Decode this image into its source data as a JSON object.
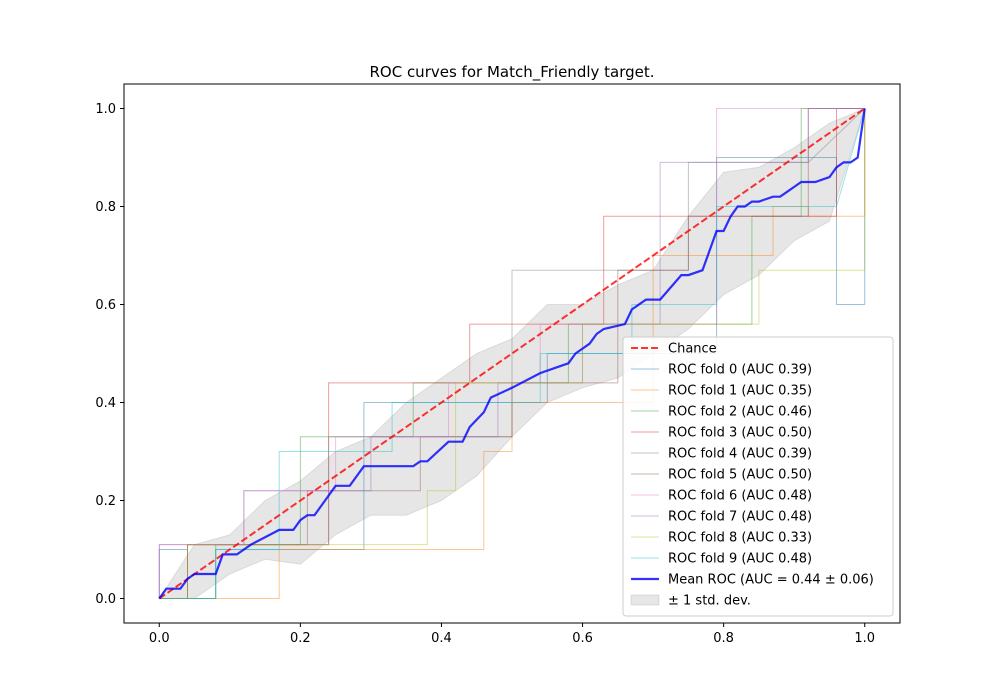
{
  "chart_data": {
    "type": "line",
    "title": "ROC curves for Match_Friendly target.",
    "xlabel": "",
    "ylabel": "",
    "xlim": [
      -0.05,
      1.05
    ],
    "ylim": [
      -0.05,
      1.05
    ],
    "xticks": [
      "0.0",
      "0.2",
      "0.4",
      "0.6",
      "0.8",
      "1.0"
    ],
    "yticks": [
      "0.0",
      "0.2",
      "0.4",
      "0.6",
      "0.8",
      "1.0"
    ],
    "grid": false,
    "legend_position": "lower-right",
    "chance": {
      "name": "Chance",
      "color": "#ff0000",
      "x": [
        0,
        1
      ],
      "y": [
        0,
        1
      ]
    },
    "folds": [
      {
        "name": "ROC fold 0 (AUC 0.39)",
        "color": "#1f77b4",
        "x": [
          0,
          0,
          0.04,
          0.04,
          0.08,
          0.08,
          0.29,
          0.29,
          0.38,
          0.38,
          0.55,
          0.55,
          0.63,
          0.63,
          0.79,
          0.79,
          0.96,
          0.96,
          1.0,
          1.0
        ],
        "y": [
          0,
          0.1,
          0.1,
          0.0,
          0.0,
          0.1,
          0.1,
          0.4,
          0.4,
          0.4,
          0.4,
          0.5,
          0.5,
          0.5,
          0.5,
          0.9,
          0.9,
          0.6,
          0.6,
          1.0
        ]
      },
      {
        "name": "ROC fold 1 (AUC 0.35)",
        "color": "#ff7f0e",
        "x": [
          0,
          0.17,
          0.17,
          0.46,
          0.46,
          0.5,
          0.5,
          0.7,
          0.7,
          0.87,
          0.87,
          0.92,
          0.92,
          1.0,
          1.0
        ],
        "y": [
          0,
          0,
          0.1,
          0.1,
          0.3,
          0.3,
          0.4,
          0.4,
          0.7,
          0.7,
          0.8,
          0.8,
          0.78,
          0.78,
          1.0
        ]
      },
      {
        "name": "ROC fold 2 (AUC 0.46)",
        "color": "#2ca02c",
        "x": [
          0,
          0.08,
          0.08,
          0.2,
          0.2,
          0.36,
          0.36,
          0.58,
          0.58,
          0.84,
          0.84,
          0.91,
          0.91,
          1.0
        ],
        "y": [
          0,
          0,
          0.11,
          0.11,
          0.33,
          0.33,
          0.44,
          0.44,
          0.56,
          0.56,
          0.78,
          0.78,
          1.0,
          1.0
        ]
      },
      {
        "name": "ROC fold 3 (AUC 0.50)",
        "color": "#d62728",
        "x": [
          0,
          0.04,
          0.04,
          0.24,
          0.24,
          0.44,
          0.44,
          0.63,
          0.63,
          0.75,
          0.75,
          0.96,
          0.96,
          1.0
        ],
        "y": [
          0,
          0,
          0.11,
          0.11,
          0.44,
          0.44,
          0.56,
          0.56,
          0.78,
          0.78,
          0.78,
          0.78,
          1.0,
          1.0
        ]
      },
      {
        "name": "ROC fold 4 (AUC 0.39)",
        "color": "#7f7f7f",
        "x": [
          0,
          0.04,
          0.04,
          0.24,
          0.24,
          0.38,
          0.38,
          0.5,
          0.5,
          0.62,
          0.62,
          0.75,
          0.75,
          0.92,
          0.92,
          1.0
        ],
        "y": [
          0,
          0,
          0.11,
          0.11,
          0.33,
          0.33,
          0.33,
          0.33,
          0.67,
          0.67,
          0.67,
          0.67,
          0.89,
          0.89,
          0.89,
          1.0
        ]
      },
      {
        "name": "ROC fold 5 (AUC 0.50)",
        "color": "#8c564b",
        "x": [
          0,
          0.04,
          0.04,
          0.21,
          0.21,
          0.37,
          0.37,
          0.5,
          0.5,
          0.65,
          0.65,
          0.75,
          0.75,
          0.92,
          0.92,
          1.0
        ],
        "y": [
          0,
          0,
          0.11,
          0.11,
          0.22,
          0.22,
          0.33,
          0.33,
          0.44,
          0.44,
          0.67,
          0.67,
          0.78,
          0.78,
          1.0,
          1.0
        ]
      },
      {
        "name": "ROC fold 6 (AUC 0.48)",
        "color": "#e377c2",
        "x": [
          0,
          0,
          0.12,
          0.12,
          0.25,
          0.25,
          0.41,
          0.41,
          0.54,
          0.54,
          0.79,
          0.79,
          1.0
        ],
        "y": [
          0,
          0.11,
          0.11,
          0.22,
          0.22,
          0.33,
          0.33,
          0.44,
          0.44,
          0.56,
          0.56,
          1.0,
          1.0
        ]
      },
      {
        "name": "ROC fold 7 (AUC 0.48)",
        "color": "#9467bd",
        "x": [
          0,
          0,
          0.12,
          0.12,
          0.3,
          0.3,
          0.48,
          0.48,
          0.6,
          0.6,
          0.71,
          0.71,
          0.92,
          0.92,
          1.0
        ],
        "y": [
          0,
          0.11,
          0.11,
          0.22,
          0.22,
          0.33,
          0.33,
          0.44,
          0.44,
          0.56,
          0.56,
          0.89,
          0.89,
          1.0,
          1.0
        ]
      },
      {
        "name": "ROC fold 8 (AUC 0.33)",
        "color": "#bcbd22",
        "x": [
          0,
          0.04,
          0.04,
          0.38,
          0.38,
          0.42,
          0.42,
          0.6,
          0.6,
          0.85,
          0.85,
          1.0,
          1.0
        ],
        "y": [
          0,
          0,
          0.11,
          0.11,
          0.22,
          0.22,
          0.44,
          0.44,
          0.56,
          0.56,
          0.67,
          0.67,
          1.0
        ]
      },
      {
        "name": "ROC fold 9 (AUC 0.48)",
        "color": "#17becf",
        "x": [
          0,
          0.08,
          0.08,
          0.17,
          0.17,
          0.25,
          0.25,
          0.33,
          0.33,
          0.54,
          0.54,
          0.67,
          0.67,
          0.79,
          0.79,
          0.96,
          0.96,
          1.0
        ],
        "y": [
          0,
          0,
          0.1,
          0.1,
          0.3,
          0.3,
          0.3,
          0.3,
          0.4,
          0.4,
          0.5,
          0.5,
          0.6,
          0.6,
          0.8,
          0.8,
          0.8,
          1.0
        ]
      }
    ],
    "mean": {
      "name": "Mean ROC (AUC = 0.44 ± 0.06)",
      "color": "#0000ff",
      "x": [
        0,
        0.01,
        0.03,
        0.04,
        0.05,
        0.08,
        0.09,
        0.11,
        0.13,
        0.17,
        0.19,
        0.2,
        0.21,
        0.22,
        0.24,
        0.25,
        0.27,
        0.29,
        0.36,
        0.37,
        0.38,
        0.41,
        0.42,
        0.43,
        0.44,
        0.46,
        0.47,
        0.5,
        0.54,
        0.56,
        0.58,
        0.59,
        0.61,
        0.62,
        0.63,
        0.66,
        0.67,
        0.69,
        0.71,
        0.74,
        0.75,
        0.77,
        0.79,
        0.8,
        0.81,
        0.82,
        0.83,
        0.84,
        0.85,
        0.87,
        0.88,
        0.89,
        0.9,
        0.91,
        0.93,
        0.95,
        0.96,
        0.97,
        0.98,
        0.99,
        1.0
      ],
      "y": [
        0,
        0.02,
        0.02,
        0.04,
        0.05,
        0.05,
        0.09,
        0.09,
        0.11,
        0.14,
        0.14,
        0.16,
        0.17,
        0.17,
        0.21,
        0.23,
        0.23,
        0.27,
        0.27,
        0.28,
        0.28,
        0.32,
        0.32,
        0.32,
        0.35,
        0.38,
        0.41,
        0.43,
        0.46,
        0.47,
        0.48,
        0.5,
        0.52,
        0.54,
        0.55,
        0.56,
        0.59,
        0.61,
        0.61,
        0.66,
        0.66,
        0.67,
        0.75,
        0.75,
        0.78,
        0.8,
        0.8,
        0.81,
        0.81,
        0.82,
        0.82,
        0.83,
        0.84,
        0.85,
        0.85,
        0.86,
        0.88,
        0.89,
        0.89,
        0.9,
        1.0
      ]
    },
    "std_band": {
      "name": "± 1 std. dev.",
      "color": "#808080",
      "x": [
        0,
        0.05,
        0.1,
        0.15,
        0.2,
        0.25,
        0.3,
        0.35,
        0.4,
        0.45,
        0.5,
        0.55,
        0.6,
        0.65,
        0.7,
        0.75,
        0.8,
        0.85,
        0.9,
        0.95,
        1.0
      ],
      "upper": [
        0,
        0.11,
        0.13,
        0.2,
        0.24,
        0.3,
        0.33,
        0.4,
        0.45,
        0.5,
        0.53,
        0.6,
        0.6,
        0.64,
        0.67,
        0.78,
        0.87,
        0.88,
        0.92,
        0.97,
        1.0
      ],
      "lower": [
        0,
        0.0,
        0.05,
        0.08,
        0.07,
        0.13,
        0.17,
        0.17,
        0.2,
        0.25,
        0.33,
        0.4,
        0.43,
        0.45,
        0.5,
        0.55,
        0.62,
        0.66,
        0.73,
        0.77,
        1.0
      ]
    }
  }
}
